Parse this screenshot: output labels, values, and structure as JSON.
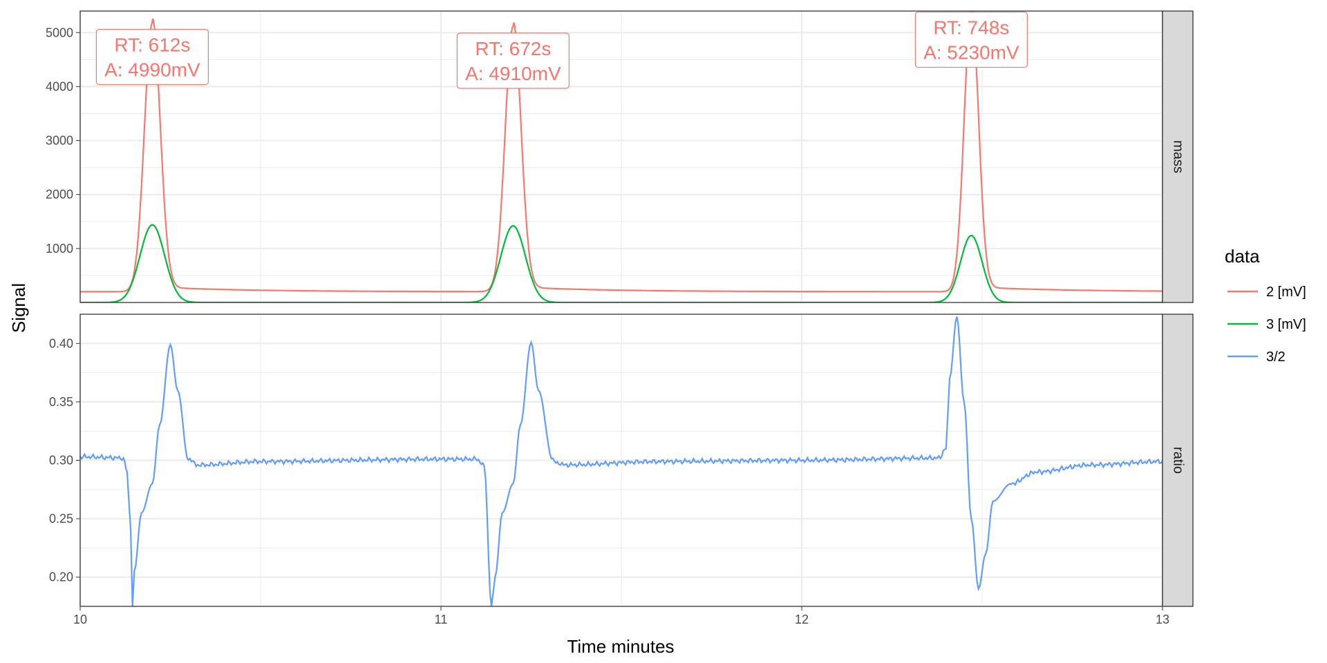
{
  "chart_data": {
    "type": "line",
    "xlabel": "Time minutes",
    "ylabel": "Signal",
    "x_ticks": [
      10,
      11,
      12,
      13
    ],
    "xlim": [
      10,
      13
    ],
    "legend": {
      "title": "data",
      "position": "right",
      "entries": [
        {
          "label": "2 [mV]",
          "color": "#F8766D"
        },
        {
          "label": "3 [mV]",
          "color": "#00BA38"
        },
        {
          "label": "3/2",
          "color": "#619CFF"
        }
      ]
    },
    "panels": [
      {
        "strip": "mass",
        "ylim": [
          0,
          5400
        ],
        "y_ticks": [
          1000,
          2000,
          3000,
          4000,
          5000
        ],
        "y_tick_labels": [
          "1000",
          "2000",
          "3000",
          "4000",
          "5000"
        ],
        "series": [
          {
            "name": "2 [mV]",
            "color": "#F8766D",
            "baseline": 200,
            "points": [
              [
                10.0,
                190
              ],
              [
                10.1,
                195
              ],
              [
                10.13,
                260
              ],
              [
                10.2,
                5180
              ],
              [
                10.27,
                520
              ],
              [
                10.35,
                290
              ],
              [
                10.6,
                240
              ],
              [
                10.75,
                230
              ],
              [
                11.0,
                200
              ],
              [
                11.12,
                200
              ],
              [
                11.15,
                250
              ],
              [
                11.2,
                5120
              ],
              [
                11.26,
                560
              ],
              [
                11.35,
                300
              ],
              [
                11.6,
                240
              ],
              [
                12.0,
                210
              ],
              [
                12.38,
                200
              ],
              [
                12.41,
                260
              ],
              [
                12.48,
                5430
              ],
              [
                12.54,
                500
              ],
              [
                12.62,
                270
              ],
              [
                12.85,
                220
              ],
              [
                13.0,
                200
              ]
            ],
            "peaks": [
              {
                "rt_min": 10.2,
                "height": 5180,
                "width": 0.022
              },
              {
                "rt_min": 11.2,
                "height": 5120,
                "width": 0.022
              },
              {
                "rt_min": 12.47,
                "height": 5430,
                "width": 0.02
              }
            ]
          },
          {
            "name": "3 [mV]",
            "color": "#00BA38",
            "baseline": 0,
            "points": [
              [
                10.0,
                0
              ],
              [
                10.12,
                10
              ],
              [
                10.2,
                1440
              ],
              [
                10.3,
                70
              ],
              [
                10.6,
                5
              ],
              [
                11.0,
                0
              ],
              [
                11.12,
                10
              ],
              [
                11.2,
                1420
              ],
              [
                11.3,
                70
              ],
              [
                11.6,
                5
              ],
              [
                12.38,
                5
              ],
              [
                12.47,
                1240
              ],
              [
                12.55,
                60
              ],
              [
                13.0,
                0
              ]
            ],
            "peaks": [
              {
                "rt_min": 10.2,
                "height": 1440,
                "width": 0.034
              },
              {
                "rt_min": 11.2,
                "height": 1420,
                "width": 0.034
              },
              {
                "rt_min": 12.47,
                "height": 1240,
                "width": 0.03
              }
            ]
          }
        ],
        "annotations": [
          {
            "x": 10.2,
            "y": 4550,
            "line1": "RT: 612s",
            "line2": "A: 4990mV"
          },
          {
            "x": 11.2,
            "y": 4480,
            "line1": "RT: 672s",
            "line2": "A: 4910mV"
          },
          {
            "x": 12.47,
            "y": 4870,
            "line1": "RT: 748s",
            "line2": "A: 5230mV"
          }
        ]
      },
      {
        "strip": "ratio",
        "ylim": [
          0.175,
          0.425
        ],
        "y_ticks": [
          0.2,
          0.25,
          0.3,
          0.35,
          0.4
        ],
        "y_tick_labels": [
          "0.20",
          "0.25",
          "0.30",
          "0.35",
          "0.40"
        ],
        "series": [
          {
            "name": "3/2",
            "color": "#619CFF",
            "points": [
              [
                10.0,
                0.303
              ],
              [
                10.12,
                0.302
              ],
              [
                10.13,
                0.29
              ],
              [
                10.14,
                0.24
              ],
              [
                10.145,
                0.175
              ],
              [
                10.15,
                0.205
              ],
              [
                10.17,
                0.255
              ],
              [
                10.2,
                0.28
              ],
              [
                10.22,
                0.33
              ],
              [
                10.25,
                0.399
              ],
              [
                10.27,
                0.36
              ],
              [
                10.3,
                0.3
              ],
              [
                10.33,
                0.296
              ],
              [
                10.5,
                0.299
              ],
              [
                11.0,
                0.301
              ],
              [
                11.1,
                0.301
              ],
              [
                11.12,
                0.295
              ],
              [
                11.14,
                0.175
              ],
              [
                11.15,
                0.2
              ],
              [
                11.17,
                0.255
              ],
              [
                11.2,
                0.28
              ],
              [
                11.22,
                0.33
              ],
              [
                11.25,
                0.401
              ],
              [
                11.27,
                0.36
              ],
              [
                11.31,
                0.3
              ],
              [
                11.34,
                0.296
              ],
              [
                11.6,
                0.299
              ],
              [
                12.0,
                0.3
              ],
              [
                12.38,
                0.302
              ],
              [
                12.4,
                0.31
              ],
              [
                12.41,
                0.37
              ],
              [
                12.43,
                0.423
              ],
              [
                12.45,
                0.35
              ],
              [
                12.47,
                0.25
              ],
              [
                12.49,
                0.19
              ],
              [
                12.51,
                0.22
              ],
              [
                12.53,
                0.265
              ],
              [
                12.58,
                0.28
              ],
              [
                12.65,
                0.29
              ],
              [
                12.8,
                0.296
              ],
              [
                13.0,
                0.299
              ]
            ]
          }
        ]
      }
    ]
  }
}
